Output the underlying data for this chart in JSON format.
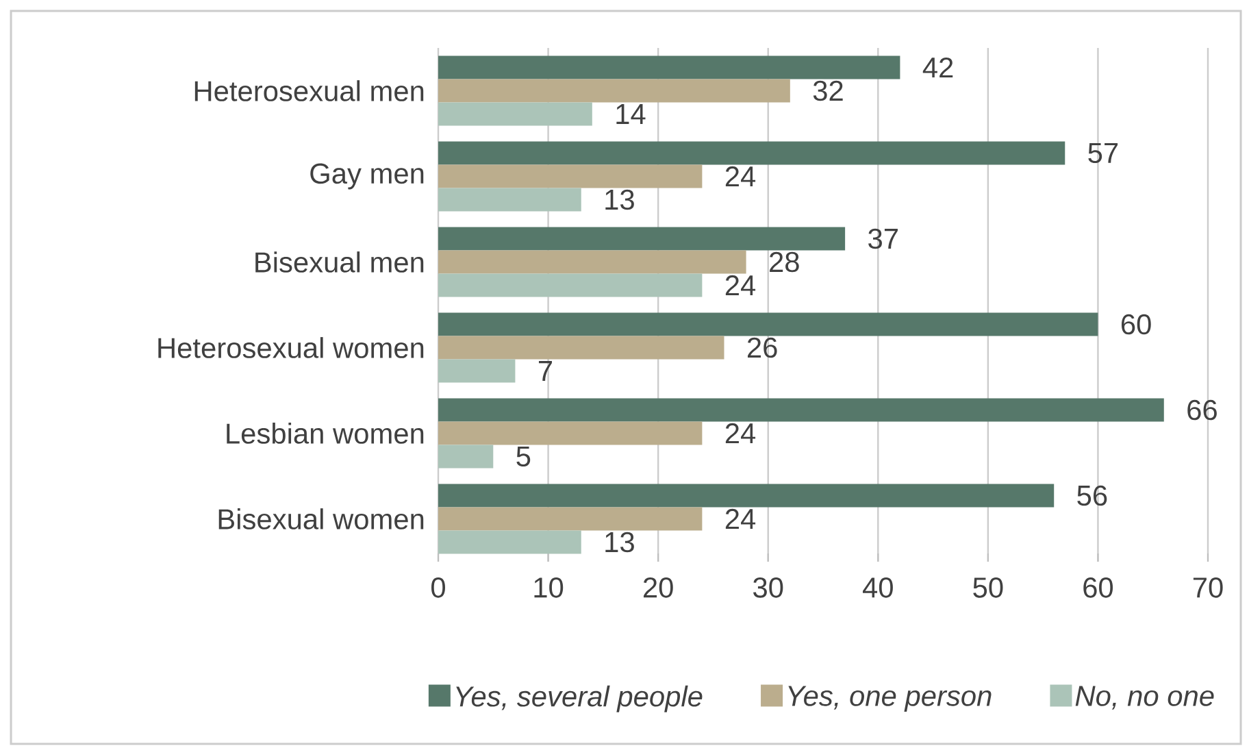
{
  "chart_data": {
    "type": "bar",
    "orientation": "horizontal",
    "categories": [
      "Heterosexual men",
      "Gay men",
      "Bisexual men",
      "Heterosexual women",
      "Lesbian women",
      "Bisexual women"
    ],
    "series": [
      {
        "name": "Yes, several people",
        "color": "#56786a",
        "values": [
          42,
          57,
          37,
          60,
          66,
          56
        ]
      },
      {
        "name": "Yes, one person",
        "color": "#bbad8d",
        "values": [
          32,
          24,
          28,
          26,
          24,
          24
        ]
      },
      {
        "name": "No, no one",
        "color": "#abc4b8",
        "values": [
          14,
          13,
          24,
          7,
          5,
          13
        ]
      }
    ],
    "xlim": [
      0,
      70
    ],
    "xticks": [
      0,
      10,
      20,
      30,
      40,
      50,
      60,
      70
    ],
    "grid": "x",
    "legend": "bottom",
    "data_labels": true
  }
}
